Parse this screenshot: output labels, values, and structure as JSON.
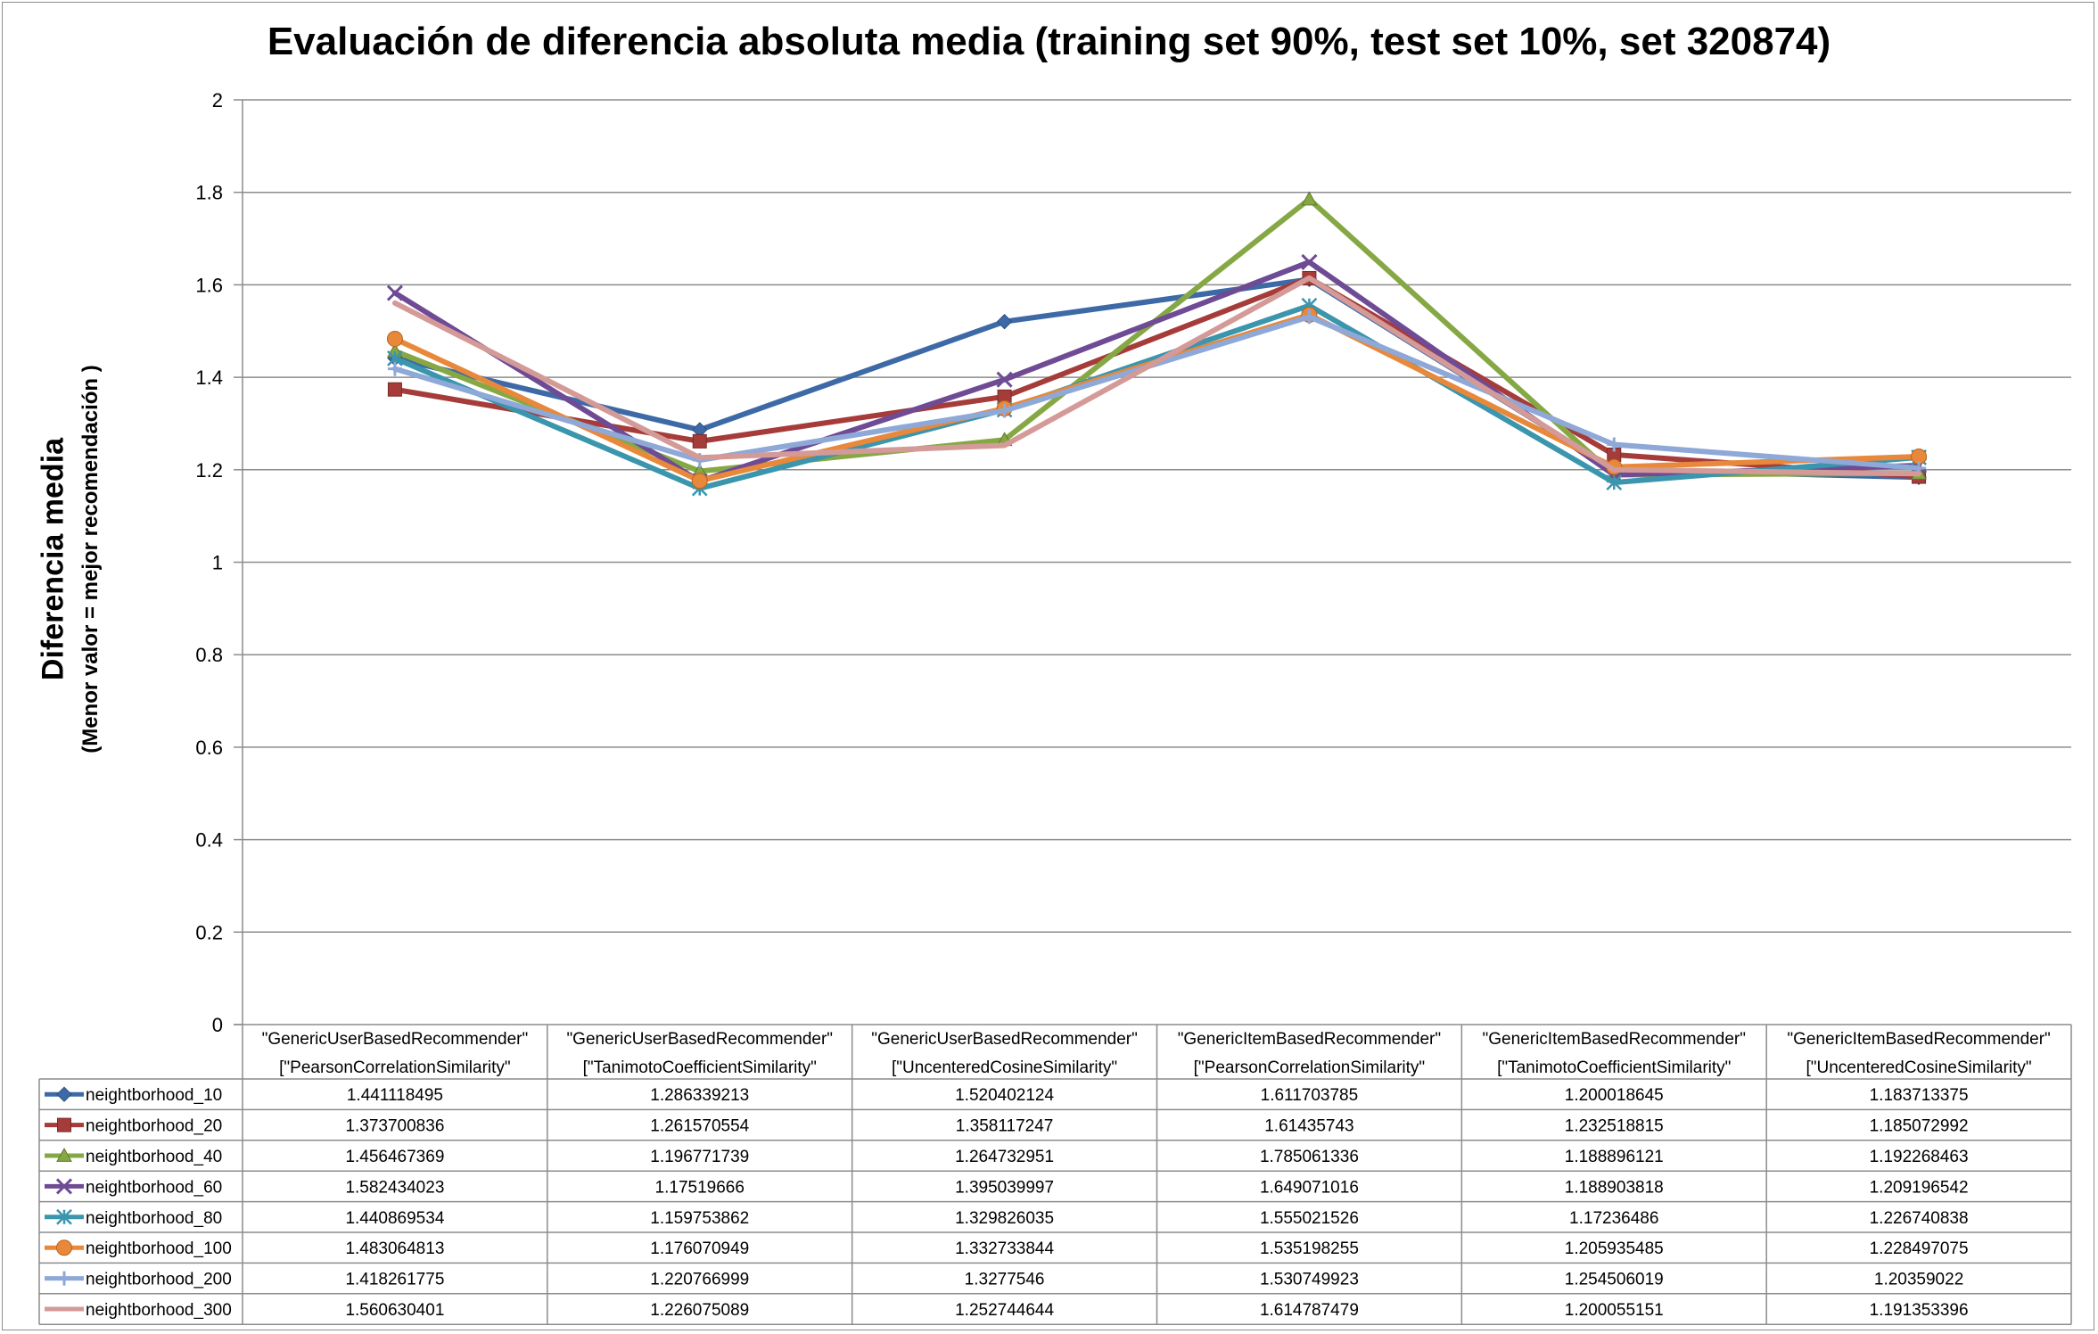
{
  "chart_data": {
    "type": "line",
    "title": "Evaluación de diferencia absoluta media (training set 90%, test set 10%, set 320874)",
    "ylabel": "Diferencia media",
    "ylabel_sub": "(Menor valor = mejor recomendación )",
    "ylim": [
      0,
      2
    ],
    "yticks": [
      "0",
      "0.2",
      "0.4",
      "0.6",
      "0.8",
      "1",
      "1.2",
      "1.4",
      "1.6",
      "1.8",
      "2"
    ],
    "grid": true,
    "legend": "data-table-below",
    "categories": [
      [
        "\"GenericUserBasedRecommender\"",
        "[\"PearsonCorrelationSimilarity\""
      ],
      [
        "\"GenericUserBasedRecommender\"",
        "[\"TanimotoCoefficientSimilarity\""
      ],
      [
        "\"GenericUserBasedRecommender\"",
        "[\"UncenteredCosineSimilarity\""
      ],
      [
        "\"GenericItemBasedRecommender\"",
        "[\"PearsonCorrelationSimilarity\""
      ],
      [
        "\"GenericItemBasedRecommender\"",
        "[\"TanimotoCoefficientSimilarity\""
      ],
      [
        "\"GenericItemBasedRecommender\"",
        "[\"UncenteredCosineSimilarity\""
      ]
    ],
    "series": [
      {
        "name": "neightborhood_10",
        "color": "#3d6aa6",
        "marker": "diamond",
        "values": [
          1.441118495,
          1.286339213,
          1.520402124,
          1.611703785,
          1.200018645,
          1.183713375
        ],
        "labels": [
          "1.441118495",
          "1.286339213",
          "1.520402124",
          "1.611703785",
          "1.200018645",
          "1.183713375"
        ]
      },
      {
        "name": "neightborhood_20",
        "color": "#a63c3a",
        "marker": "square",
        "values": [
          1.373700836,
          1.261570554,
          1.358117247,
          1.61435743,
          1.232518815,
          1.185072992
        ],
        "labels": [
          "1.373700836",
          "1.261570554",
          "1.358117247",
          "1.61435743",
          "1.232518815",
          "1.185072992"
        ]
      },
      {
        "name": "neightborhood_40",
        "color": "#86a844",
        "marker": "triangle",
        "values": [
          1.456467369,
          1.196771739,
          1.264732951,
          1.785061336,
          1.188896121,
          1.192268463
        ],
        "labels": [
          "1.456467369",
          "1.196771739",
          "1.264732951",
          "1.785061336",
          "1.188896121",
          "1.192268463"
        ]
      },
      {
        "name": "neightborhood_60",
        "color": "#6e4b94",
        "marker": "x",
        "values": [
          1.582434023,
          1.17519666,
          1.395039997,
          1.649071016,
          1.188903818,
          1.209196542
        ],
        "labels": [
          "1.582434023",
          "1.17519666",
          "1.395039997",
          "1.649071016",
          "1.188903818",
          "1.209196542"
        ]
      },
      {
        "name": "neightborhood_80",
        "color": "#3a95ad",
        "marker": "star",
        "values": [
          1.440869534,
          1.159753862,
          1.329826035,
          1.555021526,
          1.17236486,
          1.226740838
        ],
        "labels": [
          "1.440869534",
          "1.159753862",
          "1.329826035",
          "1.555021526",
          "1.17236486",
          "1.226740838"
        ]
      },
      {
        "name": "neightborhood_100",
        "color": "#e8883a",
        "marker": "circle",
        "values": [
          1.483064813,
          1.176070949,
          1.332733844,
          1.535198255,
          1.205935485,
          1.228497075
        ],
        "labels": [
          "1.483064813",
          "1.176070949",
          "1.332733844",
          "1.535198255",
          "1.205935485",
          "1.228497075"
        ]
      },
      {
        "name": "neightborhood_200",
        "color": "#8ea8d8",
        "marker": "plus",
        "values": [
          1.418261775,
          1.220766999,
          1.3277546,
          1.530749923,
          1.254506019,
          1.20359022
        ],
        "labels": [
          "1.418261775",
          "1.220766999",
          "1.3277546",
          "1.530749923",
          "1.254506019",
          "1.20359022"
        ]
      },
      {
        "name": "neightborhood_300",
        "color": "#d49a98",
        "marker": "none",
        "values": [
          1.560630401,
          1.226075089,
          1.252744644,
          1.614787479,
          1.200055151,
          1.191353396
        ],
        "labels": [
          "1.560630401",
          "1.226075089",
          "1.252744644",
          "1.614787479",
          "1.200055151",
          "1.191353396"
        ]
      }
    ]
  }
}
